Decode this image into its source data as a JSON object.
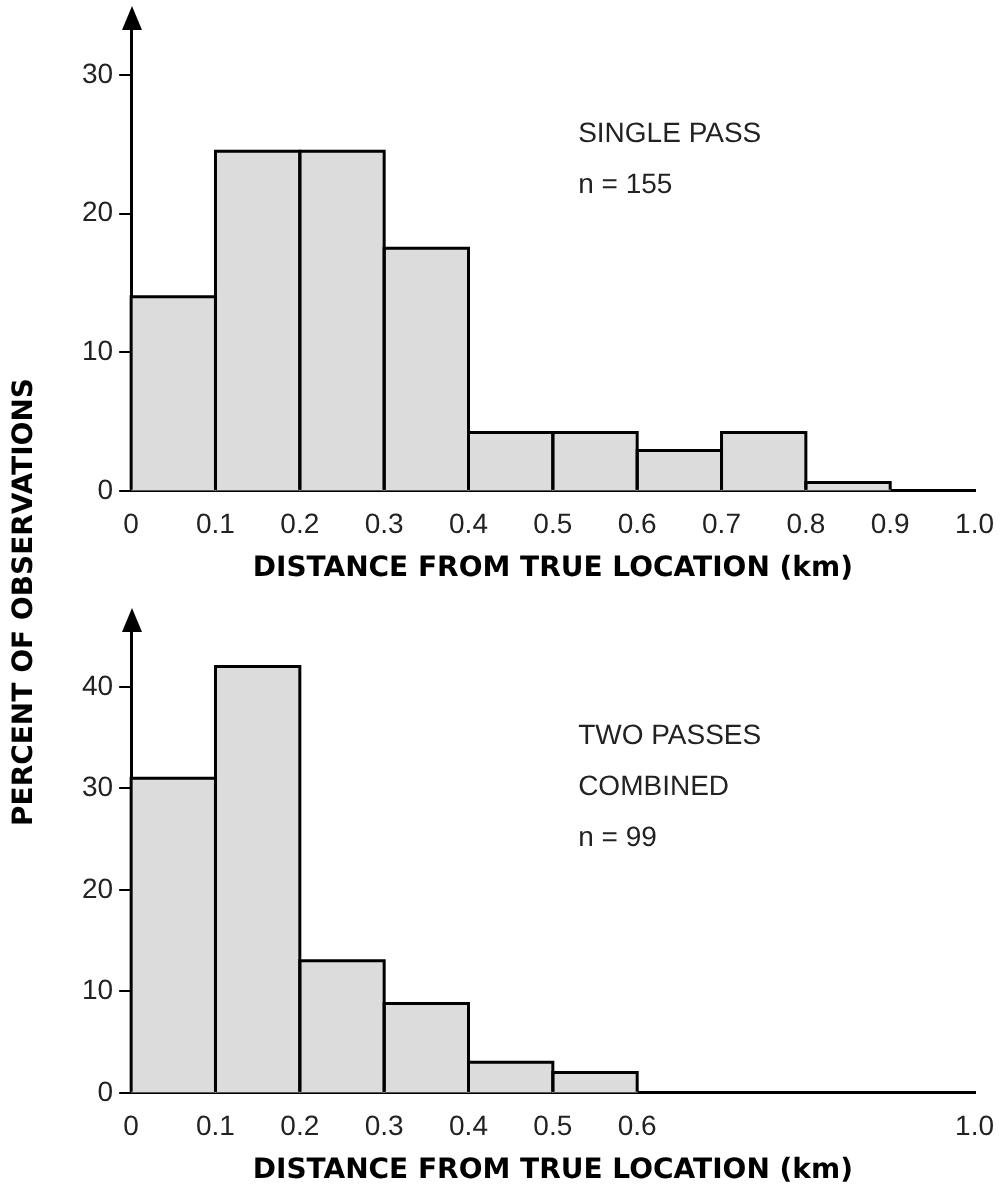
{
  "chart_data": [
    {
      "type": "histogram",
      "xlabel": "DISTANCE FROM TRUE LOCATION (km)",
      "annotations": [
        "SINGLE PASS",
        "n = 155"
      ],
      "bins": [
        0,
        0.1,
        0.2,
        0.3,
        0.4,
        0.5,
        0.6,
        0.7,
        0.8,
        0.9
      ],
      "values": [
        14,
        24.5,
        24.5,
        17.5,
        4.2,
        4.2,
        2.9,
        4.2,
        0.6
      ],
      "color": "#dcdcdc",
      "xlim": [
        0,
        1
      ],
      "xticks": [
        0,
        0.1,
        0.2,
        0.3,
        0.4,
        0.5,
        0.6,
        0.7,
        0.8,
        0.9,
        {
          "value": 1,
          "label": "1.0"
        }
      ],
      "ylim": [
        0,
        33.4
      ],
      "yticks": [
        0,
        10,
        20,
        30
      ],
      "grid": false,
      "legend": false
    },
    {
      "type": "histogram",
      "xlabel": "DISTANCE FROM TRUE LOCATION (km)",
      "ylabel": "PERCENT OF OBSERVATIONS",
      "annotations": [
        "TWO PASSES",
        "COMBINED",
        "n = 99"
      ],
      "bins": [
        0,
        0.1,
        0.2,
        0.3,
        0.4,
        0.5,
        0.6
      ],
      "values": [
        31,
        42,
        13,
        8.8,
        3,
        2
      ],
      "color": "#dcdcdc",
      "xlim": [
        0,
        1
      ],
      "xticks": [
        0,
        0.1,
        0.2,
        0.3,
        0.4,
        0.5,
        0.6,
        {
          "value": 1,
          "label": "1.0"
        }
      ],
      "ylim": [
        0,
        45.6
      ],
      "yticks": [
        0,
        10,
        20,
        30,
        40
      ],
      "grid": false,
      "legend": false
    }
  ]
}
